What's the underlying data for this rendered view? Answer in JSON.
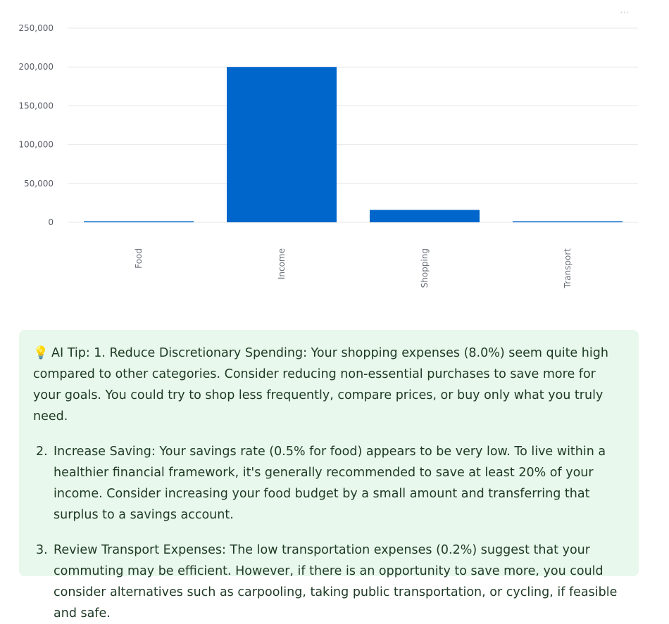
{
  "chart_data": {
    "type": "bar",
    "categories": [
      "Food",
      "Income",
      "Shopping",
      "Transport"
    ],
    "values": [
      1000,
      200000,
      16000,
      400
    ],
    "ylim": [
      0,
      250000
    ],
    "yticks": [
      0,
      50000,
      100000,
      150000,
      200000,
      250000
    ],
    "ytick_labels": [
      "0",
      "50,000",
      "100,000",
      "150,000",
      "200,000",
      "250,000"
    ],
    "grid": true,
    "bar_color": "#0066cc",
    "title": "",
    "xlabel": "",
    "ylabel": ""
  },
  "menu": {
    "more_label": "⋯"
  },
  "tip": {
    "icon": "💡",
    "intro": "AI Tip: 1. Reduce Discretionary Spending: Your shopping expenses (8.0%) seem quite high compared to other categories. Consider reducing non-essential purchases to save more for your goals. You could try to shop less frequently, compare prices, or buy only what you truly need.",
    "items": [
      {
        "num": "2.",
        "text": "Increase Saving: Your savings rate (0.5% for food) appears to be very low. To live within a healthier financial framework, it's generally recommended to save at least 20% of your income. Consider increasing your food budget by a small amount and transferring that surplus to a savings account."
      },
      {
        "num": "3.",
        "text": "Review Transport Expenses: The low transportation expenses (0.2%) suggest that your commuting may be efficient. However, if there is an opportunity to save more, you could consider alternatives such as carpooling, taking public transportation, or cycling, if feasible and safe."
      }
    ],
    "background": "#e8f8ec",
    "text_color": "#1e3a24"
  }
}
